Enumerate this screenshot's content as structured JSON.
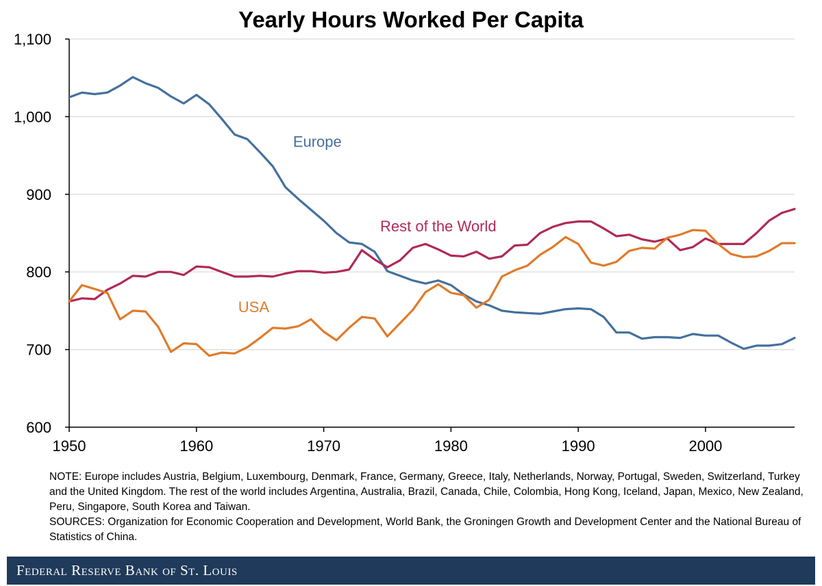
{
  "chart_data": {
    "type": "line",
    "title": "Yearly Hours Worked Per Capita",
    "xlabel": "",
    "ylabel": "",
    "xlim": [
      1950,
      2007
    ],
    "ylim": [
      600,
      1100
    ],
    "xticks": [
      1950,
      1960,
      1970,
      1980,
      1990,
      2000
    ],
    "xtick_labels": [
      "1950",
      "1960",
      "1970",
      "1980",
      "1990",
      "2000"
    ],
    "yticks": [
      600,
      700,
      800,
      900,
      1000,
      1100
    ],
    "ytick_labels": [
      "600",
      "700",
      "800",
      "900",
      "1,000",
      "1,100"
    ],
    "grid": "horizontal",
    "x": [
      1950,
      1951,
      1952,
      1953,
      1954,
      1955,
      1956,
      1957,
      1958,
      1959,
      1960,
      1961,
      1962,
      1963,
      1964,
      1965,
      1966,
      1967,
      1968,
      1969,
      1970,
      1971,
      1972,
      1973,
      1974,
      1975,
      1976,
      1977,
      1978,
      1979,
      1980,
      1981,
      1982,
      1983,
      1984,
      1985,
      1986,
      1987,
      1988,
      1989,
      1990,
      1991,
      1992,
      1993,
      1994,
      1995,
      1996,
      1997,
      1998,
      1999,
      2000,
      2001,
      2002,
      2003,
      2004,
      2005,
      2006,
      2007
    ],
    "series": [
      {
        "name": "Europe",
        "label": "Europe",
        "color": "#44709d",
        "values": [
          1025,
          1031,
          1029,
          1031,
          1040,
          1051,
          1043,
          1037,
          1026,
          1017,
          1028,
          1016,
          997,
          977,
          971,
          954,
          936,
          909,
          894,
          880,
          866,
          850,
          838,
          836,
          826,
          801,
          795,
          789,
          785,
          789,
          783,
          771,
          762,
          757,
          750,
          748,
          747,
          746,
          749,
          752,
          753,
          752,
          742,
          722,
          722,
          714,
          716,
          716,
          715,
          720,
          718,
          718,
          709,
          701,
          705,
          705,
          707,
          715
        ]
      },
      {
        "name": "Rest of the World",
        "label": "Rest of the World",
        "color": "#b02a55",
        "values": [
          762,
          766,
          765,
          777,
          785,
          795,
          794,
          800,
          800,
          796,
          807,
          806,
          800,
          794,
          794,
          795,
          794,
          798,
          801,
          801,
          799,
          800,
          803,
          828,
          816,
          806,
          815,
          831,
          836,
          829,
          821,
          820,
          826,
          817,
          820,
          834,
          835,
          850,
          858,
          863,
          865,
          865,
          856,
          846,
          848,
          842,
          839,
          843,
          828,
          832,
          843,
          836,
          836,
          836,
          850,
          866,
          876,
          881
        ]
      },
      {
        "name": "USA",
        "label": "USA",
        "color": "#e07b2a",
        "values": [
          762,
          783,
          778,
          773,
          739,
          750,
          749,
          729,
          697,
          708,
          707,
          692,
          696,
          695,
          703,
          715,
          728,
          727,
          730,
          739,
          723,
          712,
          728,
          742,
          740,
          717,
          734,
          751,
          774,
          784,
          773,
          770,
          754,
          764,
          794,
          802,
          808,
          822,
          832,
          845,
          836,
          812,
          808,
          813,
          827,
          831,
          830,
          844,
          848,
          854,
          853,
          836,
          823,
          819,
          820,
          827,
          837,
          837
        ]
      }
    ]
  },
  "notes": {
    "note": "NOTE: Europe includes Austria, Belgium, Luxembourg, Denmark, France, Germany, Greece, Italy, Netherlands, Norway, Portugal, Sweden, Switzerland, Turkey and the United Kingdom. The rest of the world includes Argentina, Australia, Brazil, Canada, Chile, Colombia, Hong Kong, Iceland, Japan, Mexico, New Zealand, Peru, Singapore, South Korea and Taiwan.",
    "sources": "SOURCES: Organization for Economic Cooperation and Development, World Bank, the Groningen Growth and Development Center and the National Bureau of Statistics of China."
  },
  "footer": {
    "brand": "Federal Reserve Bank of St. Louis"
  },
  "colors": {
    "footer_band": "#1f3a5a",
    "grid": "#d9d9d9",
    "axis": "#000000"
  }
}
